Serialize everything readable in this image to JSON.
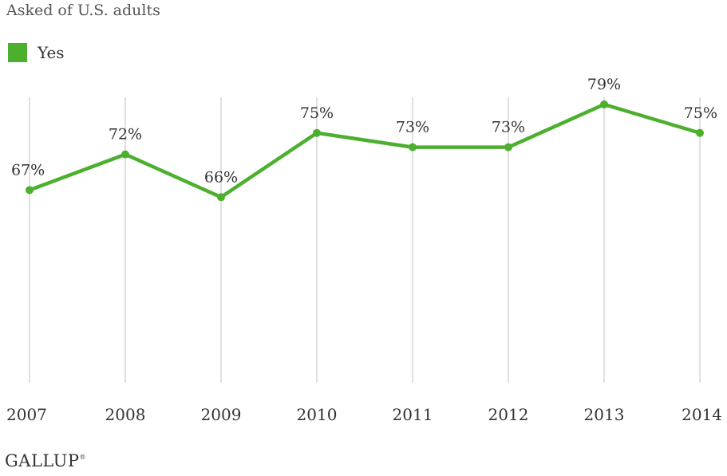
{
  "subtitle": "Asked of U.S. adults",
  "brand": "GALLUP",
  "colors": {
    "series": "#4caf2e",
    "grid": "#d6d6d6",
    "text": "#333333"
  },
  "chart_data": {
    "type": "line",
    "title": "",
    "xlabel": "",
    "ylabel": "",
    "categories": [
      "2007",
      "2008",
      "2009",
      "2010",
      "2011",
      "2012",
      "2013",
      "2014"
    ],
    "series": [
      {
        "name": "Yes",
        "values": [
          67,
          72,
          66,
          75,
          73,
          73,
          79,
          75
        ],
        "labels": [
          "67%",
          "72%",
          "66%",
          "75%",
          "73%",
          "73%",
          "79%",
          "75%"
        ],
        "color": "#4caf2e"
      }
    ],
    "ylim": [
      40,
      80
    ],
    "grid": "vertical",
    "legend": "top-left"
  }
}
